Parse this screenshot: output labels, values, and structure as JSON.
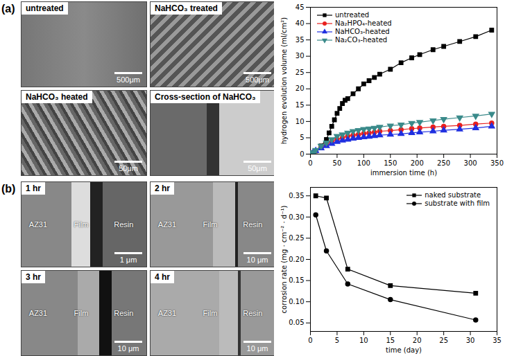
{
  "chart_data": [
    {
      "type": "line",
      "xlabel": "immersion time (h)",
      "ylabel": "hydrogen evolution volume (ml/cm²)",
      "xlim": [
        0,
        350
      ],
      "xticks": [
        0,
        50,
        100,
        150,
        200,
        250,
        300,
        350
      ],
      "ylim": [
        0,
        45
      ],
      "yticks": [
        0,
        5,
        10,
        15,
        20,
        25,
        30,
        35,
        40,
        45
      ],
      "grid": false,
      "legend": "upper left",
      "series": [
        {
          "name": "untreated",
          "color": "#000000",
          "marker": "square",
          "line_style": "solid",
          "x": [
            0,
            5,
            10,
            20,
            30,
            35,
            40,
            45,
            50,
            55,
            60,
            65,
            70,
            80,
            90,
            100,
            110,
            120,
            130,
            150,
            170,
            190,
            205,
            230,
            250,
            280,
            310,
            340
          ],
          "values": [
            0,
            0.5,
            1,
            2.5,
            4.5,
            6.5,
            8.5,
            10.5,
            12.5,
            14,
            15.5,
            16.5,
            17,
            18.5,
            20,
            21.5,
            22.5,
            23.5,
            24.5,
            26,
            28,
            29.5,
            30.5,
            32,
            33,
            34.5,
            36,
            38
          ]
        },
        {
          "name": "Na₂HPO₄-heated",
          "color": "#e8201f",
          "marker": "circle",
          "line_style": "solid",
          "x": [
            0,
            5,
            10,
            20,
            30,
            40,
            50,
            60,
            70,
            80,
            90,
            100,
            110,
            120,
            130,
            150,
            170,
            190,
            205,
            230,
            250,
            280,
            310,
            340
          ],
          "values": [
            0,
            0.5,
            1,
            2,
            3,
            3.8,
            4.5,
            5,
            5.5,
            5.8,
            6,
            6.3,
            6.5,
            6.7,
            7,
            7.2,
            7.5,
            7.8,
            8,
            8.3,
            8.5,
            8.8,
            9.2,
            9.5
          ]
        },
        {
          "name": "NaHCO₃-heated",
          "color": "#2030e0",
          "marker": "triangle",
          "line_style": "solid",
          "x": [
            0,
            5,
            10,
            20,
            30,
            40,
            50,
            60,
            70,
            80,
            90,
            100,
            110,
            120,
            130,
            150,
            170,
            190,
            205,
            230,
            250,
            280,
            310,
            340
          ],
          "values": [
            0,
            0.5,
            1,
            1.8,
            2.5,
            3.2,
            3.8,
            4.2,
            4.5,
            4.8,
            5,
            5.2,
            5.4,
            5.6,
            5.8,
            6,
            6.2,
            6.5,
            6.7,
            7,
            7.3,
            7.6,
            8,
            8.5
          ]
        },
        {
          "name": "Na₂CO₃-heated",
          "color": "#3a8a8a",
          "marker": "triangle-down",
          "line_style": "solid",
          "x": [
            0,
            5,
            10,
            20,
            30,
            40,
            50,
            60,
            70,
            80,
            90,
            100,
            110,
            120,
            130,
            150,
            170,
            190,
            205,
            230,
            250,
            280,
            310,
            340
          ],
          "values": [
            0,
            0.5,
            1.2,
            2.5,
            3.5,
            4.5,
            5.5,
            6,
            6.5,
            7,
            7.3,
            7.6,
            7.8,
            8,
            8.3,
            8.7,
            9,
            9.5,
            9.8,
            10.3,
            10.7,
            11.2,
            11.7,
            12.3
          ]
        }
      ]
    },
    {
      "type": "line",
      "xlabel": "time (day)",
      "ylabel": "corrosion rate (mg · cm⁻² · d⁻¹)",
      "xlim": [
        0,
        35
      ],
      "xticks": [
        0,
        5,
        10,
        15,
        20,
        25,
        30,
        35
      ],
      "ylim": [
        0.03,
        0.37
      ],
      "yticks": [
        {
          "value": 0.05,
          "label": "0.05"
        },
        {
          "value": 0.1,
          "label": "0.10"
        },
        {
          "value": 0.15,
          "label": "0.15"
        },
        {
          "value": 0.2,
          "label": "0.20"
        },
        {
          "value": 0.25,
          "label": "0.25"
        },
        {
          "value": 0.3,
          "label": "0.30"
        },
        {
          "value": 0.35,
          "label": "0.35"
        }
      ],
      "grid": false,
      "legend": "upper right",
      "series": [
        {
          "name": "naked substrate",
          "color": "#000000",
          "marker": "square",
          "line_style": "solid",
          "x": [
            1,
            3,
            7,
            15,
            31
          ],
          "values": [
            0.35,
            0.345,
            0.177,
            0.138,
            0.12
          ]
        },
        {
          "name": "substrate with film",
          "color": "#000000",
          "marker": "circle",
          "line_style": "solid",
          "x": [
            1,
            3,
            7,
            15,
            31
          ],
          "values": [
            0.305,
            0.22,
            0.142,
            0.105,
            0.057
          ]
        }
      ]
    }
  ],
  "figure": {
    "panels": [
      {
        "label": "(a)",
        "micrographs": [
          {
            "caption": "untreated",
            "scale_bar": "500μm"
          },
          {
            "caption": "NaHCO₃ treated",
            "scale_bar": "500μm"
          },
          {
            "caption": "NaHCO₃ heated",
            "scale_bar": "50μm"
          },
          {
            "caption": "Cross-section of NaHCO₃",
            "scale_bar": "50μm"
          }
        ]
      },
      {
        "label": "(b)",
        "micrographs": [
          {
            "caption": "1 hr",
            "regions": [
              "AZ31",
              "Film",
              "Resin"
            ],
            "scale_bar": "1 μm"
          },
          {
            "caption": "2 hr",
            "regions": [
              "AZ31",
              "Film",
              "Resin"
            ],
            "scale_bar": "10 μm"
          },
          {
            "caption": "3 hr",
            "regions": [
              "AZ31",
              "Film",
              "Resin"
            ],
            "scale_bar": "10 μm"
          },
          {
            "caption": "4 hr",
            "regions": [
              "AZ31",
              "Film",
              "Resin"
            ],
            "scale_bar": "10 μm"
          }
        ]
      }
    ]
  }
}
